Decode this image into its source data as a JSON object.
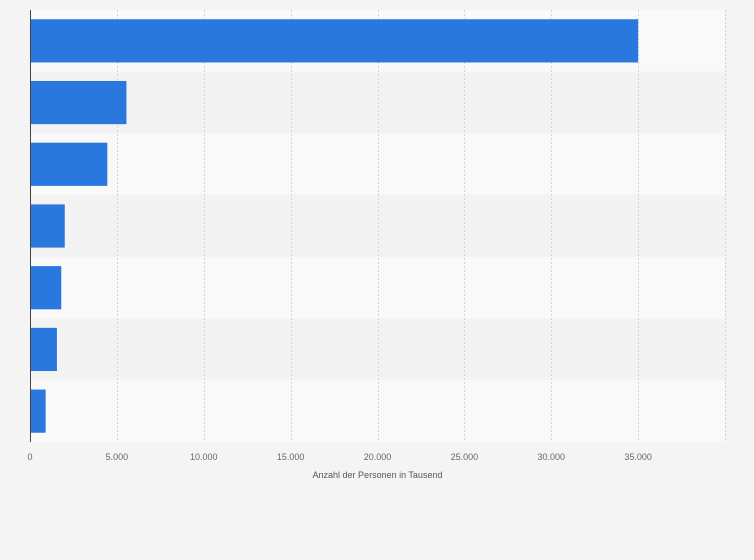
{
  "chart_data": {
    "type": "bar",
    "orientation": "horizontal",
    "categories": [
      "",
      "",
      "",
      "",
      "",
      "",
      ""
    ],
    "values": [
      35000,
      5550,
      4450,
      2000,
      1800,
      1550,
      900
    ],
    "xlabel": "Anzahl der Personen in Tausend",
    "ylabel": "",
    "xlim": [
      0,
      40000
    ],
    "x_ticks": [
      0,
      5000,
      10000,
      15000,
      20000,
      25000,
      30000,
      35000
    ],
    "x_tick_labels": [
      "0",
      "5.000",
      "10.000",
      "15.000",
      "20.000",
      "25.000",
      "30.000",
      "35.000"
    ],
    "grid": true,
    "legend": "none"
  },
  "colors": {
    "bar": "#2a78de",
    "plot_band_a": "#f9f9f9",
    "plot_band_b": "#f3f3f3",
    "grid": "#d4d4d4",
    "axis": "#444444",
    "background": "#f4f4f4"
  }
}
